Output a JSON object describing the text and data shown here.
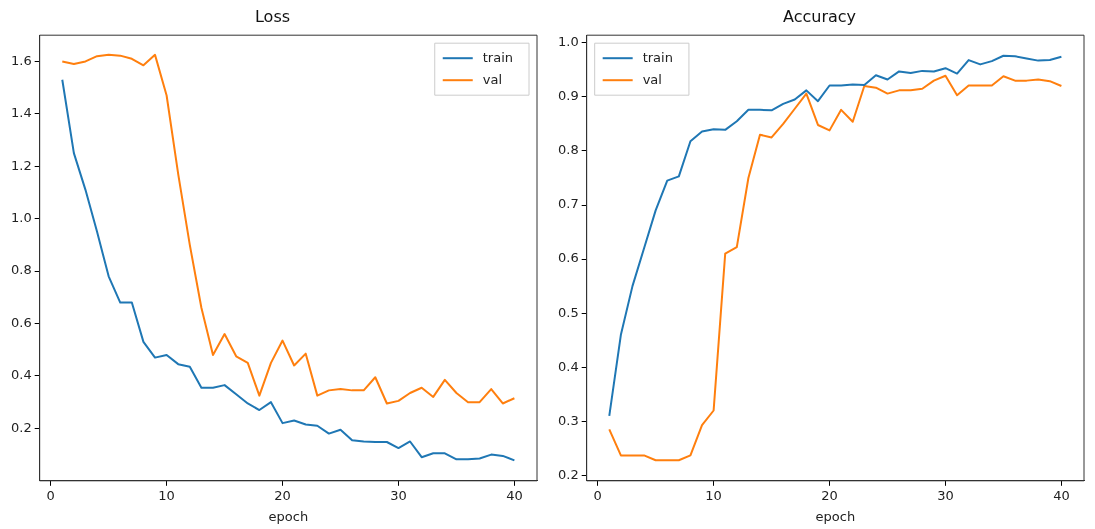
{
  "chart_data": [
    {
      "type": "line",
      "title": "Loss",
      "xlabel": "epoch",
      "legend": "top right",
      "grid": false,
      "xlim": [
        -0.95,
        41.95
      ],
      "xticks": [
        0,
        10,
        20,
        30,
        40
      ],
      "ylim": [
        0.0,
        1.7
      ],
      "yticks": [
        0.2,
        0.4,
        0.6,
        0.8,
        {
          "value": 1,
          "label": "1.0"
        },
        1.2,
        1.4,
        1.6
      ],
      "x": [
        1,
        2,
        3,
        4,
        5,
        6,
        7,
        8,
        9,
        10,
        11,
        12,
        13,
        14,
        15,
        16,
        17,
        18,
        19,
        20,
        21,
        22,
        23,
        24,
        25,
        26,
        27,
        28,
        29,
        30,
        31,
        32,
        33,
        34,
        35,
        36,
        37,
        38,
        39,
        40
      ],
      "series": [
        {
          "name": "train",
          "color": "#1f77b4",
          "values": [
            1.53,
            1.25,
            1.11,
            0.95,
            0.78,
            0.68,
            0.68,
            0.53,
            0.47,
            0.48,
            0.445,
            0.435,
            0.355,
            0.355,
            0.365,
            0.33,
            0.295,
            0.27,
            0.3,
            0.22,
            0.23,
            0.215,
            0.21,
            0.18,
            0.195,
            0.155,
            0.15,
            0.148,
            0.148,
            0.125,
            0.15,
            0.09,
            0.105,
            0.105,
            0.082,
            0.082,
            0.085,
            0.1,
            0.095,
            0.078
          ]
        },
        {
          "name": "val",
          "color": "#ff7f0e",
          "values": [
            1.6,
            1.59,
            1.6,
            1.62,
            1.625,
            1.622,
            1.61,
            1.585,
            1.625,
            1.47,
            1.17,
            0.9,
            0.66,
            0.48,
            0.56,
            0.475,
            0.45,
            0.325,
            0.45,
            0.535,
            0.44,
            0.485,
            0.325,
            0.345,
            0.35,
            0.345,
            0.345,
            0.395,
            0.295,
            0.305,
            0.335,
            0.355,
            0.32,
            0.385,
            0.335,
            0.3,
            0.3,
            0.35,
            0.295,
            0.315
          ]
        }
      ]
    },
    {
      "type": "line",
      "title": "Accuracy",
      "xlabel": "epoch",
      "legend": "top left",
      "grid": false,
      "xlim": [
        -0.95,
        41.95
      ],
      "xticks": [
        0,
        10,
        20,
        30,
        40
      ],
      "ylim": [
        0.19,
        1.014
      ],
      "yticks": [
        0.2,
        0.3,
        0.4,
        0.5,
        0.6,
        0.7,
        0.8,
        0.9,
        {
          "value": 1,
          "label": "1.0"
        }
      ],
      "x": [
        1,
        2,
        3,
        4,
        5,
        6,
        7,
        8,
        9,
        10,
        11,
        12,
        13,
        14,
        15,
        16,
        17,
        18,
        19,
        20,
        21,
        22,
        23,
        24,
        25,
        26,
        27,
        28,
        29,
        30,
        31,
        32,
        33,
        34,
        35,
        36,
        37,
        38,
        39,
        40
      ],
      "series": [
        {
          "name": "train",
          "color": "#1f77b4",
          "values": [
            0.31,
            0.46,
            0.55,
            0.62,
            0.69,
            0.745,
            0.753,
            0.818,
            0.836,
            0.84,
            0.839,
            0.855,
            0.876,
            0.876,
            0.875,
            0.887,
            0.895,
            0.912,
            0.892,
            0.921,
            0.921,
            0.923,
            0.922,
            0.94,
            0.932,
            0.947,
            0.944,
            0.948,
            0.947,
            0.953,
            0.943,
            0.968,
            0.96,
            0.966,
            0.976,
            0.975,
            0.971,
            0.967,
            0.968,
            0.974
          ]
        },
        {
          "name": "val",
          "color": "#ff7f0e",
          "values": [
            0.285,
            0.237,
            0.237,
            0.237,
            0.228,
            0.228,
            0.228,
            0.237,
            0.293,
            0.32,
            0.61,
            0.622,
            0.75,
            0.83,
            0.825,
            0.85,
            0.878,
            0.906,
            0.848,
            0.838,
            0.876,
            0.854,
            0.92,
            0.917,
            0.906,
            0.912,
            0.912,
            0.915,
            0.93,
            0.939,
            0.903,
            0.921,
            0.921,
            0.921,
            0.938,
            0.93,
            0.93,
            0.932,
            0.929,
            0.92
          ]
        }
      ]
    }
  ]
}
